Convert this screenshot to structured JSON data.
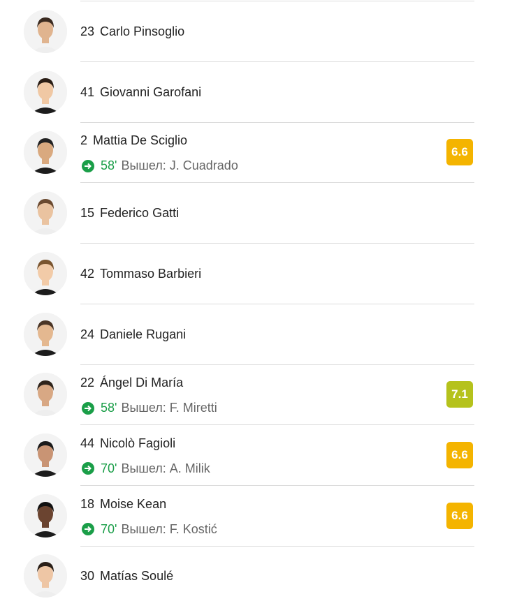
{
  "players": [
    {
      "number": "23",
      "name": "Carlo Pinsoglio",
      "rating": null,
      "sub": null
    },
    {
      "number": "41",
      "name": "Giovanni Garofani",
      "rating": null,
      "sub": null
    },
    {
      "number": "2",
      "name": "Mattia De Sciglio",
      "rating": "6.6",
      "rating_color": "#f4b400",
      "sub": {
        "minute": "58'",
        "text": "Вышел: J. Cuadrado"
      }
    },
    {
      "number": "15",
      "name": "Federico Gatti",
      "rating": null,
      "sub": null
    },
    {
      "number": "42",
      "name": "Tommaso Barbieri",
      "rating": null,
      "sub": null
    },
    {
      "number": "24",
      "name": "Daniele Rugani",
      "rating": null,
      "sub": null
    },
    {
      "number": "22",
      "name": "Ángel Di María",
      "rating": "7.1",
      "rating_color": "#b5c21c",
      "sub": {
        "minute": "58'",
        "text": "Вышел: F. Miretti"
      }
    },
    {
      "number": "44",
      "name": "Nicolò Fagioli",
      "rating": "6.6",
      "rating_color": "#f4b400",
      "sub": {
        "minute": "70'",
        "text": "Вышел: A. Milik"
      }
    },
    {
      "number": "18",
      "name": "Moise Kean",
      "rating": "6.6",
      "rating_color": "#f4b400",
      "sub": {
        "minute": "70'",
        "text": "Вышел: F. Kostić"
      }
    },
    {
      "number": "30",
      "name": "Matías Soulé",
      "rating": null,
      "sub": null
    }
  ],
  "colors": {
    "sub_green": "#1a9e48",
    "separator": "#dcdcdc"
  },
  "icons": {
    "sub_icon": "arrow-right-circle-icon",
    "avatar": "player-photo"
  }
}
